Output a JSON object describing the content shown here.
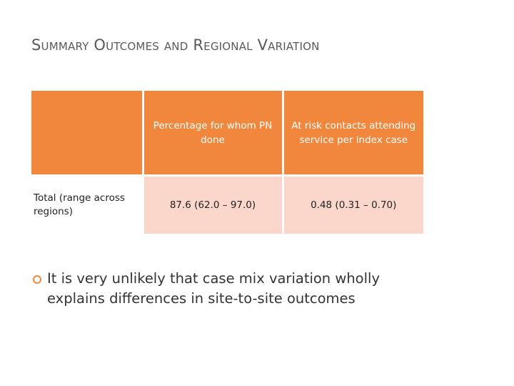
{
  "title": "Summary Outcomes and Regional Variation",
  "table": {
    "headers": [
      "",
      "Percentage for whom PN done",
      "At risk contacts attending service per index case"
    ],
    "rows": [
      {
        "label": "Total (range across regions)",
        "pn_done": "87.6 (62.0 – 97.0)",
        "contacts": "0.48 (0.31 – 0.70)"
      }
    ]
  },
  "bullets": [
    "It is very unlikely that case mix variation wholly explains differences in site-to-site outcomes"
  ],
  "colors": {
    "header_bg": "#f0873d",
    "cell_bg": "#fbd6cb",
    "bullet_accent": "#f0873d",
    "title": "#595959"
  }
}
